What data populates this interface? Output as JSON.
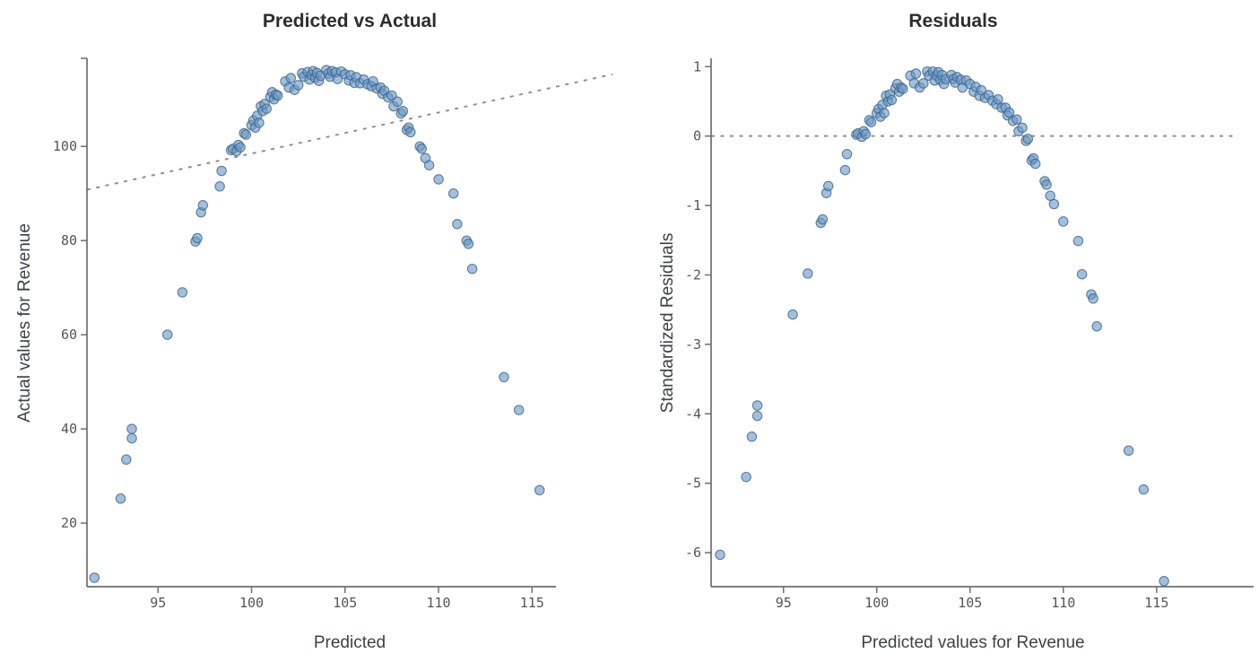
{
  "page": {
    "background": "#ffffff"
  },
  "chart_data": [
    {
      "type": "scatter",
      "title": "Predicted vs Actual",
      "xlabel": "Predicted",
      "ylabel": "Actual values for Revenue",
      "x_ticks": [
        95,
        100,
        105,
        110,
        115
      ],
      "y_ticks": [
        20,
        40,
        60,
        80,
        100
      ],
      "xlim": [
        91.2,
        119.3
      ],
      "ylim": [
        6.5,
        118.7
      ],
      "grid": false,
      "legend": false,
      "ref_line": {
        "style": "dashed",
        "points": [
          [
            91.2,
            90.8
          ],
          [
            119.3,
            115.3
          ]
        ]
      },
      "x_field": "predicted",
      "y_field": "actual"
    },
    {
      "type": "scatter",
      "title": "Residuals",
      "xlabel": "Predicted values for Revenue",
      "ylabel": "Standardized Residuals",
      "x_ticks": [
        95,
        100,
        105,
        110,
        115
      ],
      "y_ticks": [
        1,
        0,
        -1,
        -2,
        -3,
        -4,
        -5,
        -6
      ],
      "xlim": [
        91.12,
        120.2
      ],
      "ylim": [
        -6.49,
        1.12
      ],
      "grid": false,
      "legend": false,
      "ref_line": {
        "style": "dashed",
        "points": [
          [
            91.12,
            0
          ],
          [
            119.2,
            0
          ]
        ]
      },
      "x_field": "predicted",
      "y_field": "standardized_residual"
    }
  ],
  "points": {
    "columns": [
      "predicted",
      "actual",
      "standardized_residual"
    ],
    "rows": [
      [
        91.6,
        8.4,
        -6.03
      ],
      [
        93.0,
        25.2,
        -4.91
      ],
      [
        93.3,
        33.5,
        -4.33
      ],
      [
        93.6,
        38.0,
        -4.03
      ],
      [
        93.6,
        40.0,
        -3.88
      ],
      [
        95.5,
        60.0,
        -2.57
      ],
      [
        96.3,
        69.0,
        -1.98
      ],
      [
        97.0,
        79.8,
        -1.25
      ],
      [
        97.1,
        80.5,
        -1.2
      ],
      [
        97.3,
        86.0,
        -0.82
      ],
      [
        97.4,
        87.5,
        -0.72
      ],
      [
        98.3,
        91.5,
        -0.49
      ],
      [
        98.4,
        94.8,
        -0.26
      ],
      [
        98.9,
        99.2,
        0.02
      ],
      [
        99.0,
        99.5,
        0.04
      ],
      [
        99.2,
        99.0,
        -0.01
      ],
      [
        99.3,
        100.3,
        0.07
      ],
      [
        99.4,
        99.8,
        0.03
      ],
      [
        99.6,
        102.8,
        0.23
      ],
      [
        99.7,
        102.5,
        0.2
      ],
      [
        100.0,
        104.5,
        0.33
      ],
      [
        100.1,
        105.5,
        0.39
      ],
      [
        100.2,
        104.0,
        0.28
      ],
      [
        100.3,
        106.5,
        0.45
      ],
      [
        100.4,
        105.0,
        0.33
      ],
      [
        100.5,
        108.5,
        0.58
      ],
      [
        100.6,
        107.5,
        0.5
      ],
      [
        100.7,
        109.0,
        0.6
      ],
      [
        100.8,
        108.0,
        0.52
      ],
      [
        101.0,
        110.5,
        0.69
      ],
      [
        101.1,
        111.5,
        0.75
      ],
      [
        101.2,
        110.0,
        0.64
      ],
      [
        101.3,
        111.0,
        0.7
      ],
      [
        101.4,
        110.8,
        0.68
      ],
      [
        101.8,
        113.8,
        0.87
      ],
      [
        102.0,
        112.5,
        0.76
      ],
      [
        102.1,
        114.5,
        0.9
      ],
      [
        102.3,
        112.0,
        0.7
      ],
      [
        102.5,
        113.0,
        0.76
      ],
      [
        102.7,
        115.5,
        0.93
      ],
      [
        102.8,
        114.8,
        0.87
      ],
      [
        103.0,
        115.8,
        0.93
      ],
      [
        103.1,
        114.2,
        0.8
      ],
      [
        103.2,
        115.2,
        0.87
      ],
      [
        103.3,
        116.0,
        0.92
      ],
      [
        103.4,
        114.6,
        0.81
      ],
      [
        103.5,
        115.6,
        0.88
      ],
      [
        103.6,
        113.9,
        0.75
      ],
      [
        103.7,
        115.0,
        0.82
      ],
      [
        104.0,
        116.2,
        0.88
      ],
      [
        104.1,
        115.4,
        0.82
      ],
      [
        104.2,
        114.8,
        0.77
      ],
      [
        104.3,
        116.0,
        0.85
      ],
      [
        104.5,
        115.7,
        0.81
      ],
      [
        104.6,
        114.3,
        0.7
      ],
      [
        104.8,
        115.9,
        0.8
      ],
      [
        105.0,
        115.3,
        0.75
      ],
      [
        105.2,
        114.0,
        0.64
      ],
      [
        105.3,
        115.1,
        0.71
      ],
      [
        105.5,
        113.5,
        0.58
      ],
      [
        105.6,
        114.7,
        0.66
      ],
      [
        105.8,
        113.4,
        0.55
      ],
      [
        106.0,
        114.2,
        0.59
      ],
      [
        106.2,
        113.2,
        0.51
      ],
      [
        106.4,
        112.8,
        0.46
      ],
      [
        106.5,
        113.8,
        0.53
      ],
      [
        106.7,
        112.3,
        0.41
      ],
      [
        106.9,
        112.5,
        0.41
      ],
      [
        107.0,
        111.2,
        0.3
      ],
      [
        107.1,
        111.8,
        0.34
      ],
      [
        107.3,
        110.4,
        0.22
      ],
      [
        107.5,
        110.8,
        0.24
      ],
      [
        107.6,
        108.5,
        0.07
      ],
      [
        107.8,
        109.5,
        0.12
      ],
      [
        108.0,
        107.0,
        -0.07
      ],
      [
        108.1,
        107.5,
        -0.04
      ],
      [
        108.3,
        103.5,
        -0.35
      ],
      [
        108.4,
        104.0,
        -0.32
      ],
      [
        108.5,
        103.0,
        -0.4
      ],
      [
        109.0,
        100.0,
        -0.65
      ],
      [
        109.1,
        99.5,
        -0.7
      ],
      [
        109.3,
        97.5,
        -0.86
      ],
      [
        109.5,
        96.0,
        -0.98
      ],
      [
        110.0,
        93.0,
        -1.23
      ],
      [
        110.8,
        90.0,
        -1.51
      ],
      [
        111.0,
        83.5,
        -1.99
      ],
      [
        111.5,
        80.0,
        -2.28
      ],
      [
        111.6,
        79.3,
        -2.34
      ],
      [
        111.8,
        74.0,
        -2.74
      ],
      [
        113.5,
        51.0,
        -4.53
      ],
      [
        114.3,
        44.0,
        -5.09
      ],
      [
        115.4,
        27.0,
        -6.41
      ]
    ]
  },
  "style": {
    "point_fill": "#6699cc",
    "point_stroke": "#44637f",
    "axis_color": "#6e6e6e",
    "ref_line_color": "#8f8f8f",
    "title_color": "#2d2d2d",
    "axis_title_color": "#3c4248",
    "tick_label_color": "#555555"
  }
}
